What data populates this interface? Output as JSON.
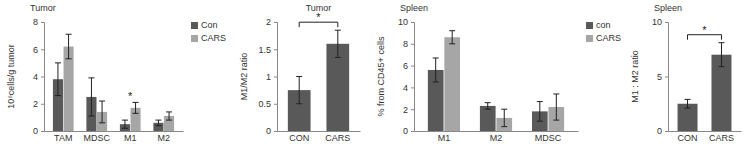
{
  "chart_data": [
    {
      "type": "bar",
      "title": "Tumor",
      "y_label": "10⁶cells/g tumor",
      "categories": [
        "TAM",
        "MDSC",
        "M1",
        "M2"
      ],
      "series": [
        {
          "name": "Con",
          "color": "#595959",
          "values": [
            3.8,
            2.5,
            0.5,
            0.6
          ],
          "errors": [
            1.2,
            1.4,
            0.3,
            0.2
          ]
        },
        {
          "name": "CARS",
          "color": "#a6a6a6",
          "values": [
            6.2,
            1.4,
            1.7,
            1.1
          ],
          "errors": [
            0.9,
            0.8,
            0.4,
            0.3
          ]
        }
      ],
      "ylim": [
        0,
        8
      ],
      "yticks": [
        0,
        2,
        4,
        6,
        8
      ],
      "legend": "right",
      "annotations": [
        {
          "text": "*",
          "categories": [
            "M1"
          ]
        }
      ]
    },
    {
      "type": "bar",
      "title": "Tumor",
      "y_label": "M1/M2 ratio",
      "categories": [
        "CON",
        "CARS"
      ],
      "values": [
        0.75,
        1.6
      ],
      "errors": [
        0.25,
        0.25
      ],
      "color": "#595959",
      "ylim": [
        0,
        2
      ],
      "yticks": [
        0,
        0.5,
        1,
        1.5,
        2
      ],
      "annotations": [
        {
          "text": "*",
          "categories": [
            "CON",
            "CARS"
          ]
        }
      ]
    },
    {
      "type": "bar",
      "title": "Spleen",
      "y_label": "% from CD45+ cells",
      "categories": [
        "M1",
        "M2",
        "MDSC"
      ],
      "series": [
        {
          "name": "con",
          "color": "#595959",
          "values": [
            5.6,
            2.3,
            1.8
          ],
          "errors": [
            1.1,
            0.3,
            0.9
          ]
        },
        {
          "name": "CARS",
          "color": "#a6a6a6",
          "values": [
            8.6,
            1.2,
            2.2
          ],
          "errors": [
            0.6,
            0.8,
            1.2
          ]
        }
      ],
      "ylim": [
        0,
        10
      ],
      "yticks": [
        0,
        2,
        4,
        6,
        8,
        10
      ],
      "legend": "right"
    },
    {
      "type": "bar",
      "title": "Spleen",
      "y_label": "M1 : M2 ratio",
      "categories": [
        "CON",
        "CARS"
      ],
      "values": [
        2.5,
        7
      ],
      "errors": [
        0.4,
        1.1
      ],
      "color": "#595959",
      "ylim": [
        0,
        10
      ],
      "yticks": [
        0,
        5,
        10
      ],
      "annotations": [
        {
          "text": "*",
          "categories": [
            "CON",
            "CARS"
          ]
        }
      ]
    }
  ]
}
